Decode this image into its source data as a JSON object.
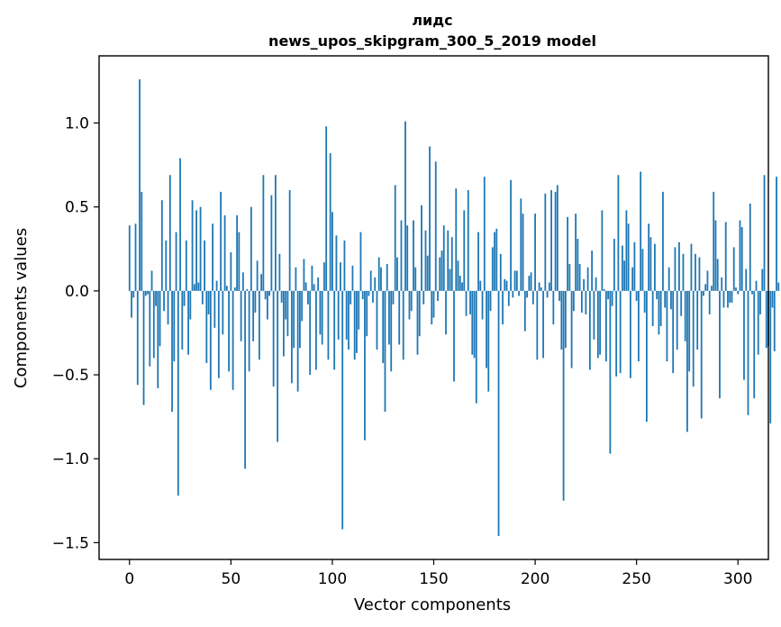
{
  "chart_data": {
    "type": "bar",
    "title": "лидс",
    "subtitle": "news_upos_skipgram_300_5_2019 model",
    "xlabel": "Vector components",
    "ylabel": "Components values",
    "xlim": [
      -15,
      315
    ],
    "ylim": [
      -1.6,
      1.4
    ],
    "x_ticks": [
      0,
      50,
      100,
      150,
      200,
      250,
      300
    ],
    "x_tick_labels": [
      "0",
      "50",
      "100",
      "150",
      "200",
      "250",
      "300"
    ],
    "y_ticks": [
      -1.5,
      -1.0,
      -0.5,
      0.0,
      0.5,
      1.0
    ],
    "y_tick_labels": [
      "−1.5",
      "−1.0",
      "−0.5",
      "0.0",
      "0.5",
      "1.0"
    ],
    "grid": false,
    "bar_color": "#1f77b4",
    "values": [
      0.39,
      -0.16,
      -0.04,
      0.4,
      -0.56,
      1.26,
      0.59,
      -0.68,
      -0.03,
      -0.02,
      -0.45,
      0.12,
      -0.4,
      -0.09,
      -0.58,
      -0.33,
      0.54,
      -0.12,
      0.3,
      -0.2,
      0.69,
      -0.72,
      -0.42,
      0.35,
      -1.22,
      0.79,
      -0.35,
      -0.09,
      0.3,
      -0.38,
      -0.17,
      0.54,
      0.04,
      0.48,
      0.05,
      0.5,
      -0.08,
      0.3,
      -0.43,
      -0.14,
      -0.59,
      0.4,
      -0.22,
      0.06,
      -0.52,
      0.59,
      -0.26,
      0.45,
      0.03,
      -0.48,
      0.23,
      -0.59,
      0.02,
      0.45,
      0.35,
      -0.3,
      0.11,
      -1.06,
      0.01,
      -0.48,
      0.5,
      -0.3,
      -0.13,
      0.18,
      -0.41,
      0.1,
      0.69,
      -0.05,
      -0.17,
      -0.03,
      0.57,
      -0.57,
      0.69,
      -0.9,
      0.22,
      -0.07,
      -0.39,
      -0.17,
      -0.27,
      0.6,
      -0.55,
      -0.34,
      0.14,
      -0.6,
      -0.34,
      -0.18,
      0.19,
      0.05,
      -0.08,
      -0.5,
      0.15,
      0.04,
      -0.47,
      0.08,
      -0.26,
      -0.32,
      0.17,
      0.98,
      -0.41,
      0.82,
      0.47,
      -0.47,
      0.33,
      -0.29,
      0.17,
      -1.42,
      0.3,
      -0.29,
      -0.35,
      -0.08,
      0.15,
      -0.41,
      -0.37,
      -0.23,
      0.35,
      -0.05,
      -0.89,
      -0.27,
      -0.03,
      0.12,
      -0.07,
      0.08,
      -0.35,
      0.2,
      0.14,
      -0.43,
      -0.72,
      0.16,
      -0.32,
      -0.48,
      -0.08,
      0.63,
      0.2,
      -0.32,
      0.42,
      -0.41,
      1.01,
      0.39,
      -0.17,
      -0.12,
      0.42,
      0.14,
      -0.38,
      -0.27,
      0.51,
      -0.08,
      0.36,
      0.21,
      0.86,
      -0.2,
      -0.16,
      0.77,
      -0.06,
      0.2,
      0.24,
      0.39,
      -0.26,
      0.36,
      0.13,
      0.32,
      -0.54,
      0.61,
      0.18,
      0.09,
      0.05,
      0.48,
      -0.15,
      0.6,
      -0.14,
      -0.38,
      -0.4,
      -0.67,
      0.35,
      0.06,
      -0.17,
      0.68,
      -0.46,
      -0.6,
      -0.12,
      0.26,
      0.35,
      0.37,
      -1.46,
      0.22,
      -0.2,
      0.07,
      0.06,
      -0.09,
      0.66,
      -0.04,
      0.12,
      0.12,
      -0.03,
      0.55,
      0.46,
      -0.24,
      -0.04,
      0.09,
      0.11,
      -0.08,
      0.46,
      -0.41,
      0.05,
      0.02,
      -0.4,
      0.58,
      -0.04,
      0.05,
      0.6,
      -0.2,
      0.59,
      0.63,
      -0.06,
      -0.35,
      -1.25,
      -0.34,
      0.44,
      0.16,
      -0.46,
      -0.12,
      0.46,
      0.31,
      0.16,
      -0.13,
      0.07,
      -0.14,
      0.14,
      -0.47,
      0.24,
      -0.29,
      0.08,
      -0.4,
      -0.38,
      0.48,
      0.01,
      -0.42,
      -0.05,
      -0.97,
      -0.09,
      0.31,
      -0.51,
      0.69,
      -0.49,
      0.27,
      0.18,
      0.48,
      0.4,
      -0.52,
      0.14,
      0.29,
      -0.06,
      -0.42,
      0.71,
      0.25,
      -0.13,
      -0.78,
      0.4,
      0.32,
      -0.21,
      0.28,
      -0.05,
      -0.26,
      -0.21,
      0.59,
      -0.1,
      -0.42,
      0.14,
      -0.11,
      -0.49,
      0.26,
      -0.35,
      0.29,
      -0.15,
      0.22,
      -0.3,
      -0.84,
      -0.48,
      0.28,
      -0.57,
      0.22,
      -0.35,
      0.2,
      -0.76,
      -0.03,
      0.04,
      0.12,
      -0.14,
      0.03,
      0.59,
      0.42,
      0.19,
      -0.64,
      0.08,
      -0.1,
      0.41,
      -0.1,
      -0.07,
      -0.07,
      0.26,
      0.02,
      -0.02,
      0.42,
      0.38,
      -0.53,
      0.13,
      -0.74,
      0.52,
      -0.02,
      -0.64,
      0.06,
      -0.38,
      -0.14,
      0.13,
      0.69,
      -0.34,
      -0.33,
      -0.79,
      -0.1,
      -0.36,
      0.68,
      0.05
    ]
  }
}
